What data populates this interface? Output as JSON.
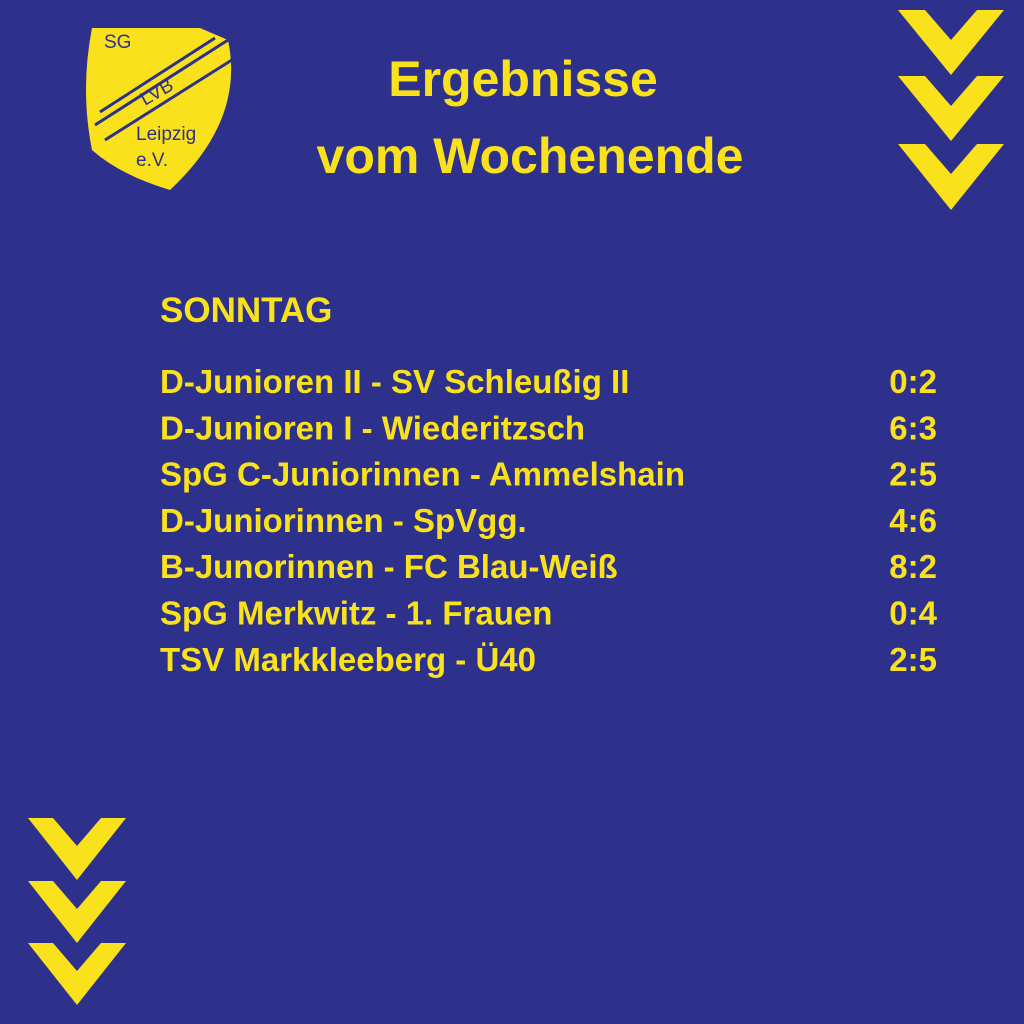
{
  "logo": {
    "top": "SG",
    "band": "LVB",
    "city": "Leipzig",
    "suffix": "e.V."
  },
  "header": {
    "title_line1": "Ergebnisse",
    "title_line2": "vom Wochenende"
  },
  "section": {
    "title": "SONNTAG",
    "rows": [
      {
        "match": "D-Junioren II - SV Schleußig II",
        "score": "0:2"
      },
      {
        "match": "D-Junioren I - Wiederitzsch",
        "score": "6:3"
      },
      {
        "match": "SpG C-Juniorinnen - Ammelshain",
        "score": "2:5"
      },
      {
        "match": "D-Juniorinnen - SpVgg.",
        "score": "4:6"
      },
      {
        "match": "B-Junorinnen - FC Blau-Weiß",
        "score": "8:2"
      },
      {
        "match": "SpG Merkwitz - 1. Frauen",
        "score": "0:4"
      },
      {
        "match": "TSV Markkleeberg - Ü40",
        "score": "2:5"
      }
    ]
  }
}
